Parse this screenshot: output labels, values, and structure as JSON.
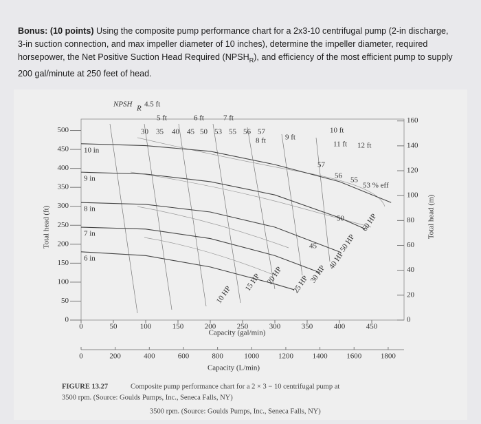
{
  "question": {
    "bold": "Bonus: (10 points)",
    "part1": "Using the composite pump performance chart for a 2x3-10 centrifugal pump (2-in discharge, 3-in suction connection, and max impeller diameter of 10 inches), determine the impeller diameter, required horsepower, the Net Positive Suction Head Required (NPSH",
    "sub": "R",
    "part2": "), and efficiency of the most efficient pump to supply 200 gal/minute at 250 feet of head."
  },
  "caption": {
    "label": "FIGURE 13.27",
    "line0": "Composite pump performance chart for a 2 × 3 − 10 centrifugal pump at",
    "line1": "3500 rpm. (Source: Goulds Pumps, Inc., Seneca Falls, NY)"
  },
  "chart_data": {
    "type": "line",
    "x_label": "Capacity (gal/min)",
    "x2_label": "Capacity (L/min)",
    "y_label": "Total head (ft)",
    "y2_label": "Total head (m)",
    "npsh_label": "NPSH",
    "npsh_sub": "R",
    "xlim": [
      0,
      500
    ],
    "xticks": [
      0,
      50,
      100,
      150,
      200,
      250,
      300,
      350,
      400,
      450
    ],
    "x2lim": [
      0,
      1893
    ],
    "x2ticks": [
      0,
      200,
      400,
      600,
      800,
      1000,
      1200,
      1400,
      1600,
      1800
    ],
    "ylim": [
      0,
      530
    ],
    "yticks": [
      0,
      50,
      100,
      150,
      200,
      250,
      300,
      350,
      400,
      450,
      500
    ],
    "y2lim": [
      0,
      161.5
    ],
    "y2ticks": [
      0,
      20,
      40,
      60,
      80,
      100,
      120,
      140,
      160
    ],
    "series": [
      {
        "name": "10 in",
        "color": "#444",
        "x": [
          0,
          100,
          200,
          300,
          400,
          480
        ],
        "values": [
          465,
          460,
          445,
          410,
          365,
          310
        ]
      },
      {
        "name": "9 in",
        "color": "#444",
        "x": [
          0,
          100,
          200,
          300,
          400,
          440
        ],
        "values": [
          390,
          385,
          365,
          330,
          270,
          240
        ]
      },
      {
        "name": "8 in",
        "color": "#444",
        "x": [
          0,
          100,
          200,
          300,
          400
        ],
        "values": [
          310,
          305,
          285,
          245,
          180
        ]
      },
      {
        "name": "7 in",
        "color": "#444",
        "x": [
          0,
          100,
          200,
          300,
          370
        ],
        "values": [
          245,
          240,
          215,
          170,
          125
        ]
      },
      {
        "name": "6 in",
        "color": "#444",
        "x": [
          0,
          100,
          200,
          300,
          330
        ],
        "values": [
          180,
          170,
          140,
          95,
          80
        ]
      }
    ],
    "annotations": [
      "4.5 ft",
      "5 ft",
      "6 ft",
      "7 ft",
      "8 ft",
      "9 ft",
      "10 ft",
      "11 ft",
      "12 ft",
      "30",
      "35",
      "40",
      "45",
      "50",
      "53",
      "55",
      "56",
      "57",
      "57",
      "56",
      "55",
      "53 % eff",
      "50",
      "45",
      "60 HP",
      "50 HP",
      "40 HP",
      "30 HP",
      "25 HP",
      "20 HP",
      "15 HP",
      "10 HP"
    ]
  }
}
